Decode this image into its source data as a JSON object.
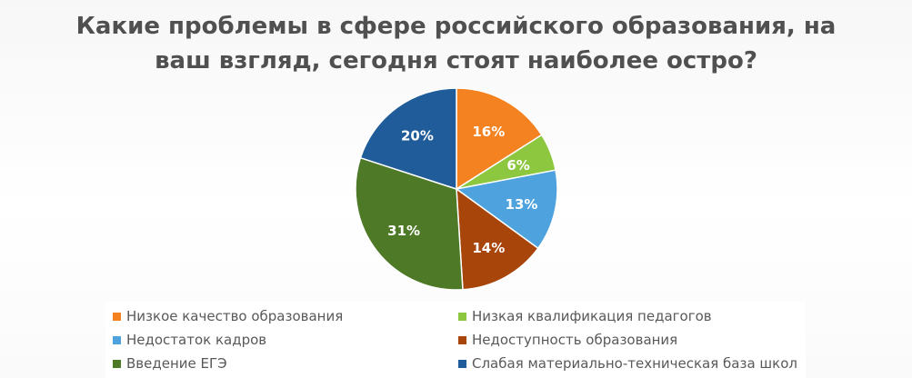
{
  "chart_data": {
    "type": "pie",
    "title_lines": [
      "Какие проблемы в сфере российского образования, на",
      "ваш взгляд, сегодня стоят наиболее остро?"
    ],
    "labels": [
      "Низкое качество образования",
      "Низкая квалификация педагогов",
      "Недостаток кадров",
      "Недоступность образования",
      "Введение ЕГЭ",
      "Слабая материально-техническая база школ"
    ],
    "values": [
      16,
      6,
      13,
      14,
      31,
      20
    ],
    "value_labels": [
      "16%",
      "6%",
      "13%",
      "14%",
      "31%",
      "20%"
    ],
    "colors": [
      "#F58220",
      "#8DC63F",
      "#4EA3DE",
      "#A8450A",
      "#4E7A28",
      "#1F5C99"
    ],
    "legend_position": "bottom",
    "legend_columns": 2
  }
}
